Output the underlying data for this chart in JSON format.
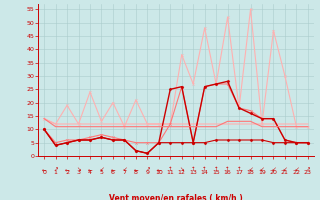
{
  "xlabel": "Vent moyen/en rafales ( km/h )",
  "bg_color": "#cce8e8",
  "grid_color": "#aacccc",
  "xlim": [
    -0.5,
    23.5
  ],
  "ylim": [
    0,
    57
  ],
  "yticks": [
    0,
    5,
    10,
    15,
    20,
    25,
    30,
    35,
    40,
    45,
    50,
    55
  ],
  "xticks": [
    0,
    1,
    2,
    3,
    4,
    5,
    6,
    7,
    8,
    9,
    10,
    11,
    12,
    13,
    14,
    15,
    16,
    17,
    18,
    19,
    20,
    21,
    22,
    23
  ],
  "series": [
    {
      "comment": "flat light pink ~12-14 rafales",
      "x": [
        0,
        1,
        2,
        3,
        4,
        5,
        6,
        7,
        8,
        9,
        10,
        11,
        12,
        13,
        14,
        15,
        16,
        17,
        18,
        19,
        20,
        21,
        22,
        23
      ],
      "y": [
        14,
        12,
        12,
        12,
        12,
        12,
        12,
        12,
        12,
        12,
        12,
        12,
        12,
        12,
        12,
        12,
        12,
        12,
        12,
        12,
        12,
        12,
        12,
        12
      ],
      "color": "#ffb0b0",
      "lw": 0.8,
      "marker": null,
      "ms": 0
    },
    {
      "comment": "rising light pink line - rafales going up to 55",
      "x": [
        0,
        1,
        2,
        3,
        4,
        5,
        6,
        7,
        8,
        9,
        10,
        11,
        12,
        13,
        14,
        15,
        16,
        17,
        18,
        19,
        20,
        21,
        22,
        23
      ],
      "y": [
        14,
        12,
        19,
        12,
        24,
        13,
        20,
        11,
        21,
        12,
        12,
        12,
        38,
        27,
        48,
        27,
        52,
        18,
        55,
        12,
        47,
        30,
        11,
        11
      ],
      "color": "#ffb0b0",
      "lw": 0.8,
      "marker": "x",
      "ms": 2
    },
    {
      "comment": "medium pink moderate peaks",
      "x": [
        0,
        1,
        2,
        3,
        4,
        5,
        6,
        7,
        8,
        9,
        10,
        11,
        12,
        13,
        14,
        15,
        16,
        17,
        18,
        19,
        20,
        21,
        22,
        23
      ],
      "y": [
        10,
        5,
        6,
        6,
        7,
        8,
        7,
        6,
        5,
        5,
        5,
        12,
        26,
        5,
        26,
        27,
        27,
        18,
        17,
        14,
        14,
        6,
        5,
        5
      ],
      "color": "#ff7777",
      "lw": 0.8,
      "marker": "x",
      "ms": 2
    },
    {
      "comment": "dark red line - low flat with small bumps",
      "x": [
        0,
        1,
        2,
        3,
        4,
        5,
        6,
        7,
        8,
        9,
        10,
        11,
        12,
        13,
        14,
        15,
        16,
        17,
        18,
        19,
        20,
        21,
        22,
        23
      ],
      "y": [
        10,
        4,
        5,
        6,
        6,
        7,
        6,
        6,
        2,
        1,
        5,
        5,
        5,
        5,
        5,
        6,
        6,
        6,
        6,
        6,
        5,
        5,
        5,
        5
      ],
      "color": "#cc0000",
      "lw": 0.8,
      "marker": "D",
      "ms": 1.5
    },
    {
      "comment": "dark red second line with 26-28 peaks",
      "x": [
        0,
        1,
        2,
        3,
        4,
        5,
        6,
        7,
        8,
        9,
        10,
        11,
        12,
        13,
        14,
        15,
        16,
        17,
        18,
        19,
        20,
        21,
        22,
        23
      ],
      "y": [
        10,
        4,
        5,
        6,
        6,
        7,
        6,
        6,
        2,
        1,
        5,
        25,
        26,
        5,
        26,
        27,
        28,
        18,
        16,
        14,
        14,
        6,
        5,
        5
      ],
      "color": "#cc0000",
      "lw": 1.0,
      "marker": "D",
      "ms": 1.5
    },
    {
      "comment": "extra flat medium red ~12",
      "x": [
        0,
        1,
        2,
        3,
        4,
        5,
        6,
        7,
        8,
        9,
        10,
        11,
        12,
        13,
        14,
        15,
        16,
        17,
        18,
        19,
        20,
        21,
        22,
        23
      ],
      "y": [
        14,
        11,
        11,
        11,
        11,
        11,
        11,
        11,
        11,
        11,
        11,
        11,
        11,
        11,
        11,
        11,
        13,
        13,
        13,
        11,
        11,
        11,
        11,
        11
      ],
      "color": "#ff7777",
      "lw": 0.8,
      "marker": null,
      "ms": 0
    }
  ],
  "arrows": [
    "←",
    "↗",
    "←",
    "↘",
    "←",
    "↙",
    "←",
    "↙",
    "←",
    "↗",
    "←",
    "↑",
    "↘",
    "↑",
    "↑",
    "↑",
    "↑",
    "↑",
    "↙",
    "↙",
    "↙",
    "↙",
    "↙",
    "↗"
  ],
  "arrow_color": "#cc0000",
  "arrow_fontsize": 4.0,
  "xlabel_fontsize": 5.5,
  "tick_fontsize": 4.5,
  "tick_color": "#cc0000"
}
